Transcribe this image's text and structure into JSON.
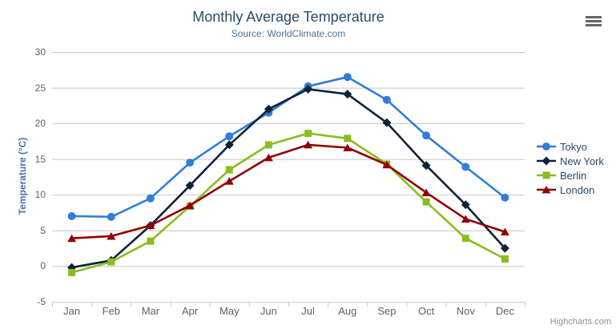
{
  "chart": {
    "title": "Monthly Average Temperature",
    "subtitle": "Source: WorldClimate.com",
    "credits": "Highcharts.com"
  },
  "chart_data": {
    "type": "line",
    "title": "Monthly Average Temperature",
    "subtitle": "Source: WorldClimate.com",
    "xlabel": "",
    "ylabel": "Temperature (°C)",
    "ylim": [
      -5,
      30
    ],
    "yticks": [
      -5,
      0,
      5,
      10,
      15,
      20,
      25,
      30
    ],
    "grid": true,
    "legend_position": "right",
    "categories": [
      "Jan",
      "Feb",
      "Mar",
      "Apr",
      "May",
      "Jun",
      "Jul",
      "Aug",
      "Sep",
      "Oct",
      "Nov",
      "Dec"
    ],
    "series": [
      {
        "name": "Tokyo",
        "color": "#2f7ed8",
        "marker": "circle",
        "values": [
          7.0,
          6.9,
          9.5,
          14.5,
          18.2,
          21.5,
          25.2,
          26.5,
          23.3,
          18.3,
          13.9,
          9.6
        ]
      },
      {
        "name": "New York",
        "color": "#0d233a",
        "marker": "diamond",
        "values": [
          -0.2,
          0.8,
          5.7,
          11.3,
          17.0,
          22.0,
          24.8,
          24.1,
          20.1,
          14.1,
          8.6,
          2.5
        ]
      },
      {
        "name": "Berlin",
        "color": "#8bbc21",
        "marker": "square",
        "values": [
          -0.9,
          0.6,
          3.5,
          8.4,
          13.5,
          17.0,
          18.6,
          17.9,
          14.3,
          9.0,
          3.9,
          1.0
        ]
      },
      {
        "name": "London",
        "color": "#910000",
        "marker": "triangle",
        "values": [
          3.9,
          4.2,
          5.7,
          8.5,
          11.9,
          15.2,
          17.0,
          16.6,
          14.2,
          10.3,
          6.6,
          4.8
        ]
      }
    ]
  },
  "colors": {
    "title": "#274b6d",
    "subtitle": "#4d759e",
    "axis_label": "#606060",
    "yaxis_title": "#4572a7",
    "gridline": "#c8c8c8",
    "axis_line": "#c0d0e0",
    "legend_text": "#274b6d",
    "credits": "#909090",
    "menu_icon": "#666666",
    "background": "#ffffff"
  }
}
